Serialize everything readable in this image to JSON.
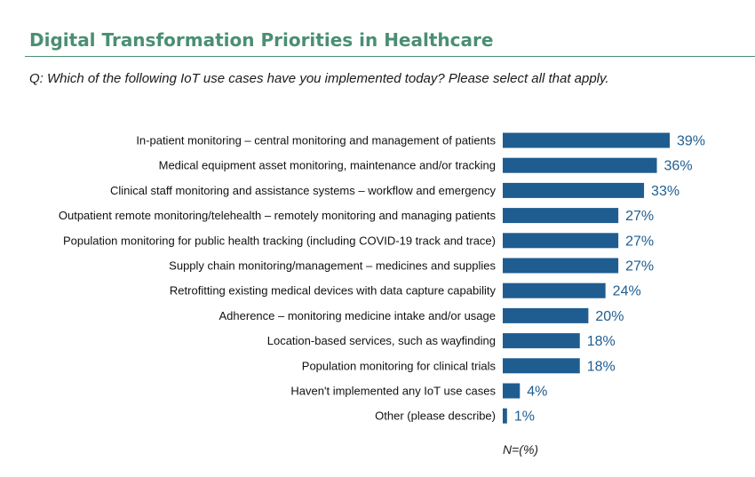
{
  "header": {
    "title": "Digital Transformation Priorities in Healthcare",
    "question": "Q: Which of the following IoT use cases have you implemented today? Please select all that apply."
  },
  "footnote": "N=(%)",
  "colors": {
    "accent": "#4a8f73",
    "bar": "#1f5d91",
    "value_label": "#1f5d91"
  },
  "chart_data": {
    "type": "bar",
    "orientation": "horizontal",
    "categories": [
      "In-patient monitoring – central monitoring and management of patients",
      "Medical equipment asset monitoring, maintenance and/or tracking",
      "Clinical staff monitoring and assistance systems – workflow and emergency",
      "Outpatient remote monitoring/telehealth – remotely monitoring and managing patients",
      "Population monitoring for public health tracking (including COVID-19 track and trace)",
      "Supply chain monitoring/management – medicines and supplies",
      "Retrofitting existing medical devices with data capture capability",
      "Adherence – monitoring medicine intake and/or usage",
      "Location-based services, such as wayfinding",
      "Population monitoring for clinical trials",
      "Haven't implemented any IoT use cases",
      "Other (please describe)"
    ],
    "values": [
      39,
      36,
      33,
      27,
      27,
      27,
      24,
      20,
      18,
      18,
      4,
      1
    ],
    "value_labels": [
      "39%",
      "36%",
      "33%",
      "27%",
      "27%",
      "27%",
      "24%",
      "20%",
      "18%",
      "18%",
      "4%",
      "1%"
    ],
    "unit": "%",
    "grid": false,
    "legend": "none"
  }
}
